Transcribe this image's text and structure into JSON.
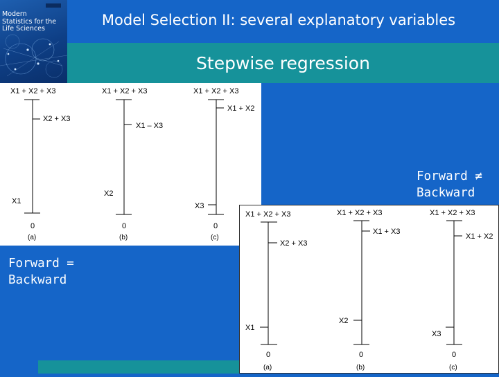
{
  "slide": {
    "title": "Model Selection II: several explanatory variables",
    "subtitle": "Stepwise regression"
  },
  "book_cover": {
    "title_lines": [
      "Modern",
      "Statistics for the",
      "Life Sciences"
    ]
  },
  "notes": {
    "forward_not_backward": [
      "Forward ≠",
      "Backward"
    ],
    "forward_equals_backward": [
      "Forward =",
      "Backward"
    ]
  },
  "figure_top": {
    "panels": [
      {
        "full": "X1 + X2 + X3",
        "step": "X2 + X3",
        "final": "X1",
        "zero": "0",
        "label": "(a)"
      },
      {
        "full": "X1 + X2 + X3",
        "step": "X1 – X3",
        "final": "X2",
        "zero": "0",
        "label": "(b)"
      },
      {
        "full": "X1 + X2 + X3",
        "step": "X1 + X2",
        "final": "X3",
        "zero": "0",
        "label": "(c)"
      }
    ]
  },
  "figure_bottom": {
    "panels": [
      {
        "full": "X1 + X2 + X3",
        "step": "X2 + X3",
        "final": "X1",
        "zero": "0",
        "label": "(a)"
      },
      {
        "full": "X1 + X2 + X3",
        "step": "X1 + X3",
        "final": "X2",
        "zero": "0",
        "label": "(b)"
      },
      {
        "full": "X1 + X2 + X3",
        "step": "X1 + X2",
        "final": "X3",
        "zero": "0",
        "label": "(c)"
      }
    ]
  }
}
